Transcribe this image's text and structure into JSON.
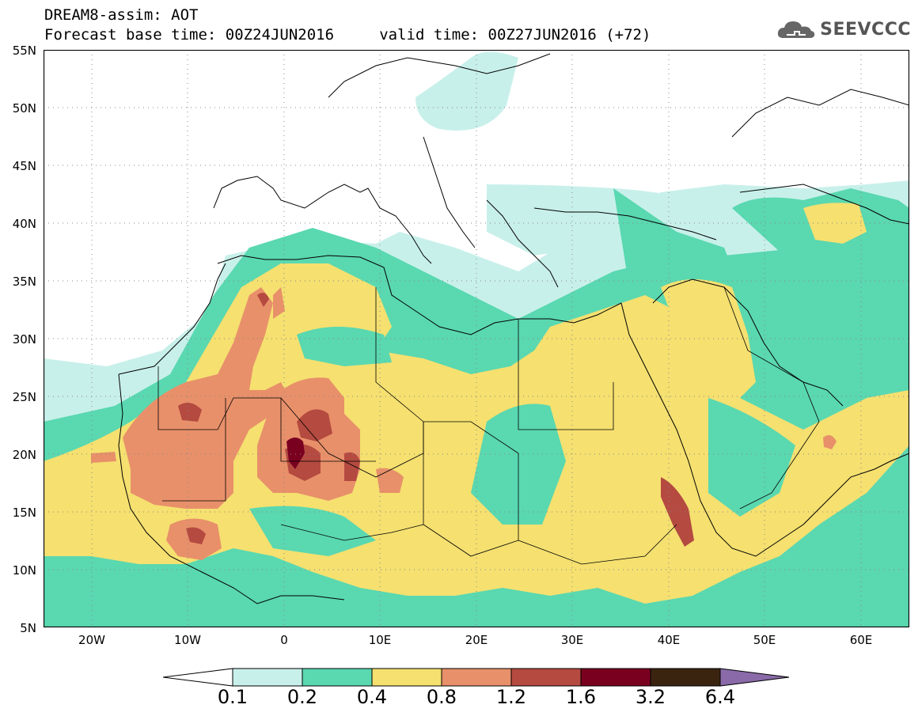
{
  "title": {
    "line1": "DREAM8-assim: AOT",
    "line2": "Forecast base time: 00Z24JUN2016     valid time: 00Z27JUN2016 (+72)"
  },
  "logo": {
    "text": "SEEVCCC",
    "icon": "cloud-icon"
  },
  "map": {
    "lat_ticks": [
      "55N",
      "50N",
      "45N",
      "40N",
      "35N",
      "30N",
      "25N",
      "20N",
      "15N",
      "10N",
      "5N"
    ],
    "lon_ticks": [
      "20W",
      "10W",
      "0",
      "10E",
      "20E",
      "30E",
      "40E",
      "50E",
      "60E"
    ],
    "lat_range": [
      5,
      55
    ],
    "lon_range": [
      -25,
      65
    ],
    "gridlines": true
  },
  "colorbar": {
    "labels": [
      "0.1",
      "0.2",
      "0.4",
      "0.8",
      "1.2",
      "1.6",
      "3.2",
      "6.4"
    ],
    "colors": [
      "#c8f0ea",
      "#5ad8b0",
      "#f5e070",
      "#e8906a",
      "#b44a40",
      "#7a0020",
      "#3a2410"
    ],
    "under_color": "#ffffff",
    "over_color": "#8a6aa8"
  }
}
